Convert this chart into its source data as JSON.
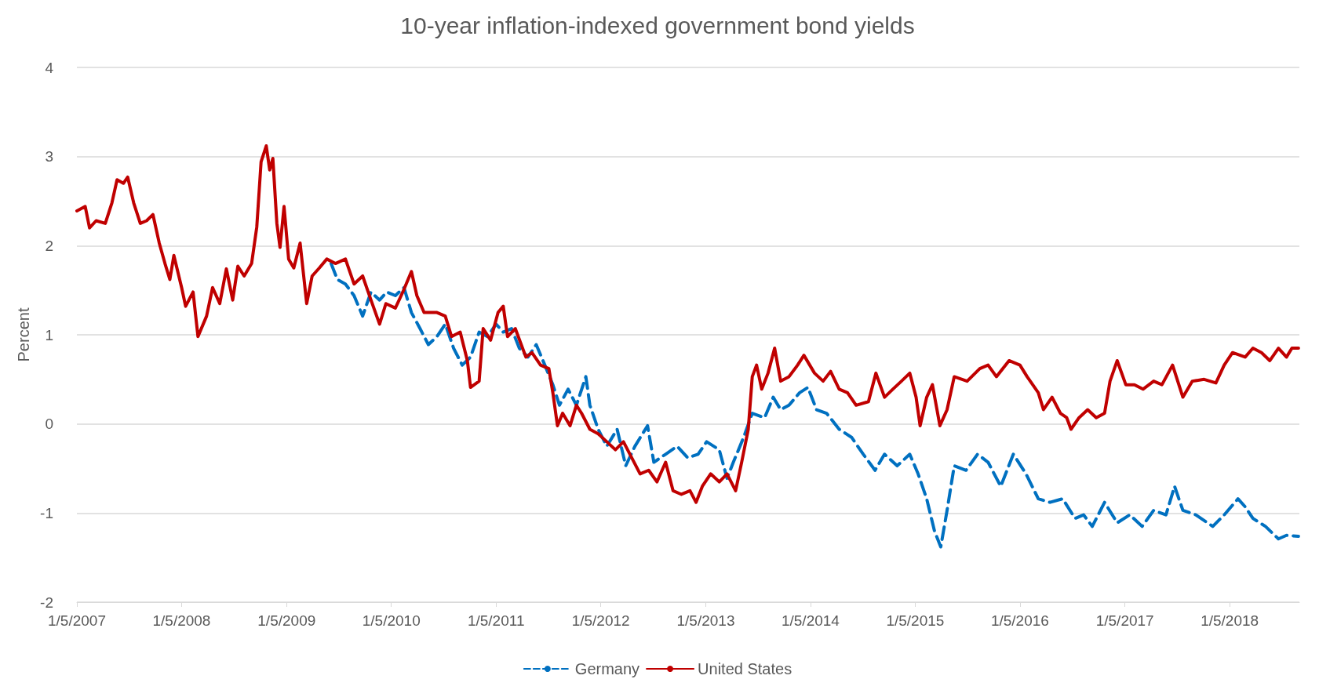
{
  "chart_data": {
    "type": "line",
    "title": "10-year inflation-indexed government bond yields",
    "ylabel": "Percent",
    "xlim": [
      "2007-01-05",
      "2018-09-05"
    ],
    "xticks": [
      {
        "value": "2007-01-05",
        "label": "1/5/2007"
      },
      {
        "value": "2008-01-05",
        "label": "1/5/2008"
      },
      {
        "value": "2009-01-05",
        "label": "1/5/2009"
      },
      {
        "value": "2010-01-05",
        "label": "1/5/2010"
      },
      {
        "value": "2011-01-05",
        "label": "1/5/2011"
      },
      {
        "value": "2012-01-05",
        "label": "1/5/2012"
      },
      {
        "value": "2013-01-05",
        "label": "1/5/2013"
      },
      {
        "value": "2014-01-05",
        "label": "1/5/2014"
      },
      {
        "value": "2015-01-05",
        "label": "1/5/2015"
      },
      {
        "value": "2016-01-05",
        "label": "1/5/2016"
      },
      {
        "value": "2017-01-05",
        "label": "1/5/2017"
      },
      {
        "value": "2018-01-05",
        "label": "1/5/2018"
      }
    ],
    "ylim": [
      -2,
      4
    ],
    "yticks": [
      -2,
      -1,
      0,
      1,
      2,
      3,
      4
    ],
    "grid": "y",
    "legend": "bottom",
    "marker": "none",
    "series": [
      {
        "name": "Germany",
        "color": "#0070c0",
        "line_style": "dashed",
        "x": [
          "2009-06-09",
          "2009-07-01",
          "2009-07-29",
          "2009-08-28",
          "2009-09-27",
          "2009-10-26",
          "2009-11-25",
          "2009-12-20",
          "2010-01-19",
          "2010-02-18",
          "2010-03-16",
          "2010-04-15",
          "2010-05-14",
          "2010-06-13",
          "2010-07-12",
          "2010-08-10",
          "2010-09-09",
          "2010-10-08",
          "2010-11-07",
          "2010-12-06",
          "2011-01-05",
          "2011-01-30",
          "2011-02-28",
          "2011-03-27",
          "2011-04-26",
          "2011-05-25",
          "2011-06-24",
          "2011-07-22",
          "2011-08-14",
          "2011-09-13",
          "2011-10-12",
          "2011-11-14",
          "2011-11-28",
          "2011-12-27",
          "2012-01-26",
          "2012-03-02",
          "2012-04-01",
          "2012-05-03",
          "2012-06-16",
          "2012-07-08",
          "2012-08-18",
          "2012-09-27",
          "2012-11-03",
          "2012-12-09",
          "2013-01-08",
          "2013-02-21",
          "2013-03-20",
          "2013-04-11",
          "2013-05-17",
          "2013-06-16",
          "2013-07-29",
          "2013-08-28",
          "2013-09-23",
          "2013-10-22",
          "2013-11-28",
          "2013-12-27",
          "2014-01-26",
          "2014-03-02",
          "2014-04-15",
          "2014-05-28",
          "2014-07-08",
          "2014-08-18",
          "2014-09-20",
          "2014-11-03",
          "2014-12-17",
          "2015-01-15",
          "2015-02-14",
          "2015-03-13",
          "2015-04-04",
          "2015-04-26",
          "2015-05-21",
          "2015-07-01",
          "2015-08-10",
          "2015-09-16",
          "2015-10-30",
          "2015-12-13",
          "2016-01-26",
          "2016-03-09",
          "2016-04-19",
          "2016-06-02",
          "2016-07-15",
          "2016-08-14",
          "2016-09-13",
          "2016-10-26",
          "2016-12-09",
          "2017-01-22",
          "2017-03-06",
          "2017-04-15",
          "2017-05-28",
          "2017-06-27",
          "2017-07-26",
          "2017-09-09",
          "2017-11-07",
          "2017-12-17",
          "2018-02-03",
          "2018-02-28",
          "2018-03-27",
          "2018-05-10",
          "2018-06-24",
          "2018-07-22",
          "2018-09-02"
        ],
        "values": [
          1.8,
          1.62,
          1.57,
          1.44,
          1.21,
          1.48,
          1.39,
          1.48,
          1.44,
          1.53,
          1.25,
          1.07,
          0.89,
          0.98,
          1.12,
          0.85,
          0.66,
          0.75,
          1.03,
          0.98,
          1.12,
          1.03,
          1.07,
          0.85,
          0.75,
          0.89,
          0.66,
          0.44,
          0.21,
          0.39,
          0.21,
          0.53,
          0.21,
          -0.06,
          -0.25,
          -0.06,
          -0.47,
          -0.25,
          -0.02,
          -0.43,
          -0.34,
          -0.25,
          -0.38,
          -0.34,
          -0.2,
          -0.29,
          -0.61,
          -0.43,
          -0.15,
          0.12,
          0.07,
          0.3,
          0.16,
          0.21,
          0.35,
          0.41,
          0.16,
          0.12,
          -0.06,
          -0.15,
          -0.34,
          -0.52,
          -0.34,
          -0.47,
          -0.34,
          -0.56,
          -0.84,
          -1.2,
          -1.38,
          -0.97,
          -0.47,
          -0.52,
          -0.34,
          -0.43,
          -0.7,
          -0.34,
          -0.56,
          -0.84,
          -0.88,
          -0.84,
          -1.06,
          -1.02,
          -1.15,
          -0.88,
          -1.11,
          -1.02,
          -1.15,
          -0.97,
          -1.02,
          -0.7,
          -0.97,
          -1.02,
          -1.15,
          -1.02,
          -0.84,
          -0.93,
          -1.06,
          -1.15,
          -1.29,
          -1.25,
          -1.26
        ]
      },
      {
        "name": "United States",
        "color": "#c00000",
        "line_style": "solid",
        "x": [
          "2007-01-05",
          "2007-02-03",
          "2007-02-18",
          "2007-03-13",
          "2007-04-14",
          "2007-05-07",
          "2007-05-25",
          "2007-06-16",
          "2007-07-01",
          "2007-07-22",
          "2007-08-14",
          "2007-09-05",
          "2007-09-27",
          "2007-10-19",
          "2007-11-08",
          "2007-11-25",
          "2007-12-09",
          "2008-01-05",
          "2008-01-19",
          "2008-02-14",
          "2008-03-02",
          "2008-04-01",
          "2008-04-22",
          "2008-05-17",
          "2008-06-09",
          "2008-07-01",
          "2008-07-19",
          "2008-08-10",
          "2008-09-05",
          "2008-09-23",
          "2008-10-08",
          "2008-10-26",
          "2008-11-07",
          "2008-11-18",
          "2008-12-02",
          "2008-12-13",
          "2008-12-27",
          "2009-01-12",
          "2009-01-30",
          "2009-02-21",
          "2009-03-16",
          "2009-04-04",
          "2009-04-29",
          "2009-05-25",
          "2009-06-24",
          "2009-07-29",
          "2009-08-28",
          "2009-09-27",
          "2009-10-26",
          "2009-11-25",
          "2009-12-17",
          "2010-01-19",
          "2010-02-14",
          "2010-03-16",
          "2010-04-04",
          "2010-04-29",
          "2010-06-13",
          "2010-07-12",
          "2010-08-03",
          "2010-09-02",
          "2010-09-27",
          "2010-10-08",
          "2010-11-07",
          "2010-11-21",
          "2010-12-17",
          "2011-01-12",
          "2011-01-30",
          "2011-02-14",
          "2011-03-13",
          "2011-04-19",
          "2011-05-10",
          "2011-06-09",
          "2011-07-08",
          "2011-07-22",
          "2011-08-07",
          "2011-08-25",
          "2011-09-20",
          "2011-10-12",
          "2011-10-30",
          "2011-11-28",
          "2011-12-27",
          "2012-01-26",
          "2012-02-25",
          "2012-03-24",
          "2012-04-22",
          "2012-05-21",
          "2012-06-20",
          "2012-07-19",
          "2012-08-18",
          "2012-09-13",
          "2012-10-12",
          "2012-11-11",
          "2012-12-02",
          "2012-12-24",
          "2013-01-22",
          "2013-02-21",
          "2013-03-20",
          "2013-04-19",
          "2013-05-10",
          "2013-06-02",
          "2013-06-16",
          "2013-07-01",
          "2013-07-19",
          "2013-08-10",
          "2013-09-02",
          "2013-09-23",
          "2013-10-22",
          "2013-11-21",
          "2013-12-13",
          "2014-01-19",
          "2014-02-18",
          "2014-03-16",
          "2014-04-15",
          "2014-05-14",
          "2014-06-13",
          "2014-07-26",
          "2014-08-21",
          "2014-09-20",
          "2014-10-19",
          "2014-11-18",
          "2014-12-17",
          "2015-01-08",
          "2015-01-22",
          "2015-02-14",
          "2015-03-06",
          "2015-04-01",
          "2015-04-26",
          "2015-05-21",
          "2015-07-05",
          "2015-08-18",
          "2015-09-16",
          "2015-10-15",
          "2015-11-28",
          "2016-01-05",
          "2016-01-30",
          "2016-03-09",
          "2016-03-27",
          "2016-04-26",
          "2016-05-25",
          "2016-06-16",
          "2016-07-01",
          "2016-07-29",
          "2016-08-28",
          "2016-09-27",
          "2016-10-26",
          "2016-11-14",
          "2016-12-09",
          "2017-01-08",
          "2017-02-07",
          "2017-03-09",
          "2017-04-15",
          "2017-05-14",
          "2017-06-20",
          "2017-07-26",
          "2017-08-28",
          "2017-10-08",
          "2017-11-18",
          "2017-12-17",
          "2018-01-15",
          "2018-02-28",
          "2018-03-27",
          "2018-04-26",
          "2018-05-25",
          "2018-06-24",
          "2018-07-22",
          "2018-08-10",
          "2018-09-02"
        ],
        "values": [
          2.39,
          2.44,
          2.2,
          2.28,
          2.25,
          2.48,
          2.74,
          2.7,
          2.77,
          2.48,
          2.25,
          2.28,
          2.35,
          2.03,
          1.8,
          1.62,
          1.89,
          1.53,
          1.32,
          1.48,
          0.98,
          1.21,
          1.53,
          1.35,
          1.74,
          1.39,
          1.77,
          1.66,
          1.8,
          2.21,
          2.94,
          3.12,
          2.85,
          2.98,
          2.25,
          1.98,
          2.44,
          1.85,
          1.75,
          2.03,
          1.35,
          1.66,
          1.75,
          1.85,
          1.8,
          1.85,
          1.57,
          1.66,
          1.39,
          1.12,
          1.35,
          1.3,
          1.48,
          1.71,
          1.44,
          1.25,
          1.25,
          1.21,
          0.98,
          1.03,
          0.71,
          0.41,
          0.48,
          1.07,
          0.94,
          1.25,
          1.32,
          0.98,
          1.07,
          0.75,
          0.8,
          0.66,
          0.62,
          0.35,
          -0.02,
          0.12,
          -0.02,
          0.21,
          0.12,
          -0.06,
          -0.11,
          -0.2,
          -0.29,
          -0.2,
          -0.38,
          -0.56,
          -0.52,
          -0.65,
          -0.43,
          -0.75,
          -0.79,
          -0.75,
          -0.88,
          -0.7,
          -0.56,
          -0.65,
          -0.56,
          -0.75,
          -0.43,
          -0.06,
          0.53,
          0.66,
          0.39,
          0.57,
          0.85,
          0.48,
          0.53,
          0.66,
          0.77,
          0.57,
          0.48,
          0.59,
          0.39,
          0.35,
          0.21,
          0.25,
          0.57,
          0.3,
          0.39,
          0.48,
          0.57,
          0.3,
          -0.02,
          0.3,
          0.44,
          -0.02,
          0.16,
          0.53,
          0.48,
          0.62,
          0.66,
          0.53,
          0.71,
          0.66,
          0.53,
          0.35,
          0.16,
          0.3,
          0.12,
          0.07,
          -0.06,
          0.07,
          0.16,
          0.07,
          0.12,
          0.48,
          0.71,
          0.44,
          0.44,
          0.39,
          0.48,
          0.44,
          0.66,
          0.3,
          0.48,
          0.5,
          0.46,
          0.66,
          0.8,
          0.75,
          0.85,
          0.8,
          0.71,
          0.85,
          0.75,
          0.85,
          0.85
        ]
      }
    ]
  }
}
